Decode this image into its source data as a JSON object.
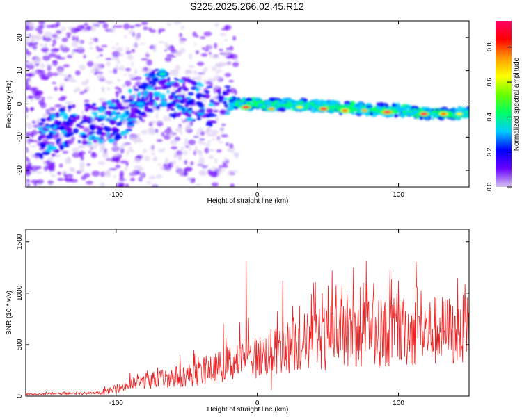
{
  "title": "S225.2025.266.02.45.R12",
  "chart_data": [
    {
      "type": "heatmap",
      "xlabel": "Height of straight line (km)",
      "ylabel": "Frequency (Hz)",
      "xlim": [
        -164,
        150
      ],
      "ylim": [
        -25,
        25
      ],
      "xticks": [
        -100,
        0,
        100
      ],
      "yticks": [
        -20,
        -10,
        0,
        10,
        20
      ],
      "colorbar": {
        "label": "Normalized spectral amplitude",
        "range": [
          0,
          0.95
        ],
        "ticks": [
          "0.0",
          "0.2",
          "0.4",
          "0.6",
          "0.8"
        ],
        "tick_values": [
          0,
          0.2,
          0.4,
          0.6,
          0.8
        ],
        "colors": [
          "#d7c6f0",
          "#6a00ff",
          "#0000ff",
          "#00ccff",
          "#00ff66",
          "#66ff00",
          "#ffff00",
          "#ff9900",
          "#ff0000",
          "#ff0066"
        ]
      },
      "ridge": [
        {
          "x": -150,
          "y": -10
        },
        {
          "x": -130,
          "y": -6
        },
        {
          "x": -110,
          "y": -6
        },
        {
          "x": -95,
          "y": -4
        },
        {
          "x": -85,
          "y": 1
        },
        {
          "x": -70,
          "y": 5
        },
        {
          "x": -60,
          "y": 2
        },
        {
          "x": -45,
          "y": 1
        },
        {
          "x": -30,
          "y": -1
        },
        {
          "x": -20,
          "y": 0
        },
        {
          "x": 0,
          "y": 0
        },
        {
          "x": 25,
          "y": 0
        },
        {
          "x": 50,
          "y": -1
        },
        {
          "x": 75,
          "y": -1.5
        },
        {
          "x": 100,
          "y": -2
        },
        {
          "x": 125,
          "y": -3
        },
        {
          "x": 150,
          "y": -3
        }
      ],
      "peaks": [
        {
          "x": -8,
          "y": -1,
          "amp": 0.9
        },
        {
          "x": 10,
          "y": -1.5,
          "amp": 0.7
        },
        {
          "x": 30,
          "y": -1,
          "amp": 0.6
        },
        {
          "x": 47,
          "y": -1.5,
          "amp": 0.9
        },
        {
          "x": 62,
          "y": -2,
          "amp": 0.85
        },
        {
          "x": 76,
          "y": -2,
          "amp": 0.7
        },
        {
          "x": 92,
          "y": -2.5,
          "amp": 0.95
        },
        {
          "x": 118,
          "y": -3,
          "amp": 0.9
        },
        {
          "x": 132,
          "y": -3,
          "amp": 0.8
        },
        {
          "x": 143,
          "y": -3,
          "amp": 0.6
        },
        {
          "x": -67,
          "y": 9,
          "amp": 0.4
        },
        {
          "x": -83,
          "y": 0,
          "amp": 0.35
        }
      ]
    },
    {
      "type": "line",
      "xlabel": "Height of straight line (km)",
      "ylabel": "SNR (10 * v/v)",
      "xlim": [
        -164,
        150
      ],
      "ylim": [
        0,
        1620
      ],
      "xticks": [
        -100,
        0,
        100
      ],
      "yticks": [
        0,
        500,
        1000,
        1500
      ],
      "series_color": "#ee2222",
      "envelope": [
        {
          "x": -164,
          "y": 20
        },
        {
          "x": -110,
          "y": 30
        },
        {
          "x": -80,
          "y": 150
        },
        {
          "x": -40,
          "y": 220
        },
        {
          "x": -20,
          "y": 320
        },
        {
          "x": 0,
          "y": 380
        },
        {
          "x": 20,
          "y": 470
        },
        {
          "x": 40,
          "y": 560
        },
        {
          "x": 60,
          "y": 590
        },
        {
          "x": 80,
          "y": 600
        },
        {
          "x": 100,
          "y": 620
        },
        {
          "x": 120,
          "y": 630
        },
        {
          "x": 150,
          "y": 640
        }
      ],
      "spikes": [
        {
          "x": -108,
          "y": 95
        },
        {
          "x": -78,
          "y": 250
        },
        {
          "x": -22,
          "y": 470
        },
        {
          "x": -8,
          "y": 1310
        },
        {
          "x": 18,
          "y": 1120
        },
        {
          "x": 30,
          "y": 880
        },
        {
          "x": 40,
          "y": 980
        },
        {
          "x": 46,
          "y": 1000
        },
        {
          "x": 53,
          "y": 1220
        },
        {
          "x": 60,
          "y": 1080
        },
        {
          "x": 62,
          "y": 850
        },
        {
          "x": 68,
          "y": 1250
        },
        {
          "x": 73,
          "y": 1060
        },
        {
          "x": 82,
          "y": 950
        },
        {
          "x": 98,
          "y": 790
        },
        {
          "x": 113,
          "y": 1060
        },
        {
          "x": 140,
          "y": 780
        }
      ],
      "dips": [
        {
          "x": 10,
          "y": 60
        },
        {
          "x": 48,
          "y": 250
        },
        {
          "x": 70,
          "y": 290
        }
      ]
    }
  ]
}
